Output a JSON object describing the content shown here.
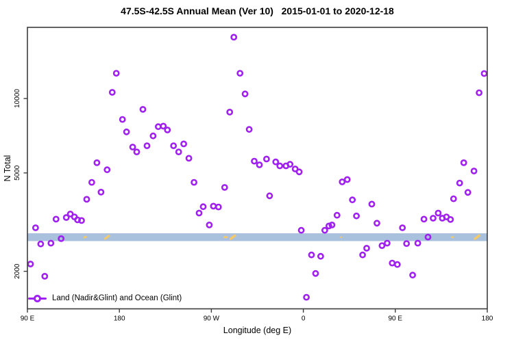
{
  "title": "47.5S-42.5S Annual Mean (Ver 10)   2015-01-01 to 2020-12-18",
  "legend": {
    "label": "Land (Nadir&Glint) and Ocean (Glint)"
  },
  "colors": {
    "point": "#A020F0",
    "band": "#A9C1DD",
    "band_mark": "#F6C968",
    "frame": "#3c3c3c",
    "text": "#000000"
  },
  "chart_data": {
    "type": "scatter",
    "title": "47.5S-42.5S Annual Mean (Ver 10)   2015-01-01 to 2020-12-18",
    "xlabel": "Longitude (deg E)",
    "ylabel": "N Total",
    "y_scale": "log10",
    "ylim": [
      1410,
      19400
    ],
    "grid": false,
    "x_axis": {
      "note": "axis runs eastward from 90E and wraps past the dateline and prime meridian back to 180; values below are degrees along that continuous axis (90=90E left edge, 180, 270=90W, 360=0, 450=90E, 540=180 right edge)",
      "min": 90,
      "max": 540,
      "ticks": [
        90,
        180,
        270,
        360,
        450,
        540
      ],
      "tick_labels": [
        "90 E",
        "180",
        "90 W",
        "0",
        "90 E",
        "180"
      ]
    },
    "y_ticks": [
      2000,
      5000,
      10000
    ],
    "y_tick_labels": [
      "2000",
      "5000",
      "10000"
    ],
    "reference_band": {
      "y_min": 2650,
      "y_max": 2850,
      "color": "#A9C1DD"
    },
    "band_marks": [
      {
        "x": 146.5,
        "w": 5,
        "h": 3,
        "rot": -20
      },
      {
        "x": 168,
        "w": 10,
        "h": 3,
        "rot": -38
      },
      {
        "x": 284,
        "w": 6,
        "h": 3,
        "rot": 0
      },
      {
        "x": 291,
        "w": 11,
        "h": 3.5,
        "rot": -38
      },
      {
        "x": 397,
        "w": 3,
        "h": 2,
        "rot": 0
      },
      {
        "x": 506,
        "w": 4,
        "h": 2.5,
        "rot": 0
      },
      {
        "x": 530,
        "w": 11,
        "h": 3.5,
        "rot": -38
      }
    ],
    "legend_position": "bottom-left",
    "series": [
      {
        "name": "Land (Nadir&Glint) and Ocean (Glint)",
        "marker": "open-circle",
        "color": "#A020F0",
        "points": [
          [
            93,
            2140
          ],
          [
            98,
            3000
          ],
          [
            103,
            2580
          ],
          [
            107,
            1910
          ],
          [
            113,
            2600
          ],
          [
            118,
            3250
          ],
          [
            123,
            2710
          ],
          [
            128,
            3300
          ],
          [
            132,
            3410
          ],
          [
            136,
            3320
          ],
          [
            139,
            3230
          ],
          [
            143,
            3210
          ],
          [
            148,
            3910
          ],
          [
            153,
            4580
          ],
          [
            158,
            5500
          ],
          [
            162,
            4180
          ],
          [
            168,
            5150
          ],
          [
            173,
            10590
          ],
          [
            177,
            12650
          ],
          [
            183,
            8230
          ],
          [
            187,
            7330
          ],
          [
            193,
            6360
          ],
          [
            197,
            6080
          ],
          [
            203,
            9040
          ],
          [
            207,
            6440
          ],
          [
            213,
            7060
          ],
          [
            218,
            7690
          ],
          [
            223,
            7730
          ],
          [
            227,
            7460
          ],
          [
            233,
            6440
          ],
          [
            238,
            6080
          ],
          [
            243,
            6550
          ],
          [
            248,
            5730
          ],
          [
            253,
            4580
          ],
          [
            258,
            3440
          ],
          [
            262,
            3650
          ],
          [
            268,
            3080
          ],
          [
            272,
            3670
          ],
          [
            277,
            3640
          ],
          [
            283,
            4370
          ],
          [
            288,
            8810
          ],
          [
            292,
            17700
          ],
          [
            298,
            12650
          ],
          [
            303,
            10440
          ],
          [
            307,
            7500
          ],
          [
            312,
            5580
          ],
          [
            317,
            5390
          ],
          [
            324,
            5690
          ],
          [
            327,
            4040
          ],
          [
            333,
            5540
          ],
          [
            337,
            5340
          ],
          [
            343,
            5340
          ],
          [
            347,
            5420
          ],
          [
            352,
            5190
          ],
          [
            356,
            5050
          ],
          [
            358,
            2930
          ],
          [
            363,
            1570
          ],
          [
            368,
            2330
          ],
          [
            372,
            1960
          ],
          [
            377,
            2300
          ],
          [
            381,
            2930
          ],
          [
            385,
            3050
          ],
          [
            388,
            3080
          ],
          [
            393,
            3370
          ],
          [
            398,
            4600
          ],
          [
            403,
            4700
          ],
          [
            408,
            3890
          ],
          [
            412,
            3350
          ],
          [
            418,
            2330
          ],
          [
            422,
            2480
          ],
          [
            427,
            3740
          ],
          [
            432,
            3130
          ],
          [
            437,
            2540
          ],
          [
            442,
            2600
          ],
          [
            447,
            2160
          ],
          [
            452,
            2130
          ],
          [
            457,
            3000
          ],
          [
            461,
            2590
          ],
          [
            467,
            1930
          ],
          [
            472,
            2600
          ],
          [
            478,
            3250
          ],
          [
            482,
            2750
          ],
          [
            487,
            3280
          ],
          [
            492,
            3440
          ],
          [
            496,
            3280
          ],
          [
            500,
            3320
          ],
          [
            504,
            3240
          ],
          [
            507,
            3930
          ],
          [
            513,
            4550
          ],
          [
            517,
            5500
          ],
          [
            521,
            4170
          ],
          [
            527,
            5090
          ],
          [
            532,
            10550
          ],
          [
            537,
            12620
          ]
        ]
      }
    ]
  }
}
